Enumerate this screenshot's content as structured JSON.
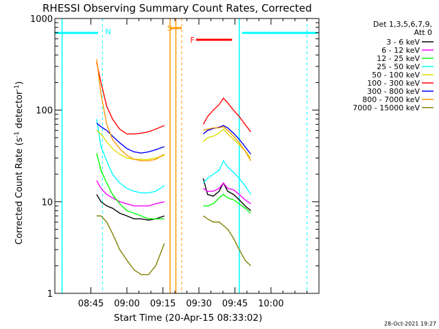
{
  "chart_data": {
    "type": "line",
    "title": "RHESSI Observing Summary Count Rates, Corrected",
    "xlabel": "Start Time (20-Apr-15 08:33:02)",
    "ylabel": "Corrected Count Rate (s",
    "ylabel_sup1": "-1",
    "ylabel_mid": " detector",
    "ylabel_sup2": "-1",
    "ylabel_end": ")",
    "yscale": "log",
    "ylim": [
      1,
      1000
    ],
    "xlim_minutes": [
      8.5,
      10.33
    ],
    "y_ticks": [
      {
        "value": 1,
        "label": "1"
      },
      {
        "value": 10,
        "label": "10"
      },
      {
        "value": 100,
        "label": "100"
      },
      {
        "value": 1000,
        "label": "1000"
      }
    ],
    "x_ticks": [
      {
        "time": "08:45",
        "hours": 8.75
      },
      {
        "time": "09:00",
        "hours": 9.0
      },
      {
        "time": "09:15",
        "hours": 9.25
      },
      {
        "time": "09:30",
        "hours": 9.5
      },
      {
        "time": "09:45",
        "hours": 9.75
      },
      {
        "time": "10:00",
        "hours": 10.0
      }
    ],
    "legend": {
      "placement": "top-right",
      "header1": "Det 1,3,5,6,7,9,",
      "header2": "Att 0"
    },
    "series": [
      {
        "name": "3 - 6 keV",
        "color": "#000000",
        "seg1": [
          [
            8.79,
            12
          ],
          [
            8.82,
            10
          ],
          [
            8.86,
            9
          ],
          [
            8.9,
            8.5
          ],
          [
            8.95,
            7.5
          ],
          [
            9.0,
            7
          ],
          [
            9.05,
            6.5
          ],
          [
            9.1,
            6.5
          ],
          [
            9.15,
            6.3
          ],
          [
            9.2,
            6.5
          ],
          [
            9.26,
            7
          ]
        ],
        "seg2": [
          [
            9.53,
            18
          ],
          [
            9.56,
            12
          ],
          [
            9.6,
            11.5
          ],
          [
            9.64,
            13
          ],
          [
            9.67,
            16
          ],
          [
            9.7,
            13
          ],
          [
            9.74,
            12
          ],
          [
            9.78,
            10.5
          ],
          [
            9.82,
            9
          ],
          [
            9.86,
            8
          ]
        ]
      },
      {
        "name": "6 - 12 keV",
        "color": "#ff00ff",
        "seg1": [
          [
            8.79,
            17
          ],
          [
            8.82,
            14
          ],
          [
            8.86,
            12
          ],
          [
            8.9,
            11
          ],
          [
            8.95,
            10
          ],
          [
            9.0,
            9.5
          ],
          [
            9.05,
            9
          ],
          [
            9.1,
            9
          ],
          [
            9.15,
            9
          ],
          [
            9.2,
            9.5
          ],
          [
            9.26,
            10
          ]
        ],
        "seg2": [
          [
            9.53,
            14
          ],
          [
            9.56,
            13
          ],
          [
            9.6,
            13
          ],
          [
            9.64,
            14
          ],
          [
            9.67,
            16
          ],
          [
            9.7,
            14
          ],
          [
            9.74,
            13.5
          ],
          [
            9.78,
            12
          ],
          [
            9.82,
            10.5
          ],
          [
            9.86,
            9.5
          ]
        ]
      },
      {
        "name": "12 - 25 keV",
        "color": "#00ff00",
        "seg1": [
          [
            8.79,
            34
          ],
          [
            8.82,
            22
          ],
          [
            8.86,
            16
          ],
          [
            8.9,
            12
          ],
          [
            8.95,
            9.5
          ],
          [
            9.0,
            8
          ],
          [
            9.05,
            7.5
          ],
          [
            9.1,
            7
          ],
          [
            9.15,
            6.5
          ],
          [
            9.2,
            6.5
          ],
          [
            9.26,
            6.5
          ]
        ],
        "seg2": [
          [
            9.53,
            9
          ],
          [
            9.56,
            9
          ],
          [
            9.6,
            9.5
          ],
          [
            9.64,
            11
          ],
          [
            9.67,
            12
          ],
          [
            9.7,
            11
          ],
          [
            9.74,
            10.5
          ],
          [
            9.78,
            9.5
          ],
          [
            9.82,
            8.5
          ],
          [
            9.86,
            7.5
          ]
        ]
      },
      {
        "name": "25 - 50 keV",
        "color": "#00ffff",
        "seg1": [
          [
            8.79,
            80
          ],
          [
            8.82,
            40
          ],
          [
            8.86,
            28
          ],
          [
            8.9,
            20
          ],
          [
            8.95,
            16
          ],
          [
            9.0,
            14
          ],
          [
            9.05,
            13
          ],
          [
            9.1,
            12.5
          ],
          [
            9.15,
            12.5
          ],
          [
            9.2,
            13
          ],
          [
            9.26,
            15
          ]
        ],
        "seg2": [
          [
            9.53,
            16
          ],
          [
            9.56,
            18
          ],
          [
            9.6,
            20
          ],
          [
            9.64,
            22
          ],
          [
            9.67,
            28
          ],
          [
            9.7,
            24
          ],
          [
            9.74,
            21
          ],
          [
            9.78,
            18
          ],
          [
            9.82,
            15
          ],
          [
            9.86,
            12
          ]
        ]
      },
      {
        "name": "50 - 100 keV",
        "color": "#dddd00",
        "seg1": [
          [
            8.79,
            60
          ],
          [
            8.82,
            55
          ],
          [
            8.86,
            45
          ],
          [
            8.9,
            38
          ],
          [
            8.95,
            33
          ],
          [
            9.0,
            30
          ],
          [
            9.05,
            29
          ],
          [
            9.1,
            29
          ],
          [
            9.15,
            29
          ],
          [
            9.2,
            30
          ],
          [
            9.26,
            32
          ]
        ],
        "seg2": [
          [
            9.53,
            45
          ],
          [
            9.56,
            50
          ],
          [
            9.6,
            52
          ],
          [
            9.64,
            56
          ],
          [
            9.67,
            62
          ],
          [
            9.7,
            55
          ],
          [
            9.74,
            48
          ],
          [
            9.78,
            42
          ],
          [
            9.82,
            36
          ],
          [
            9.86,
            30
          ]
        ]
      },
      {
        "name": "100 - 300 keV",
        "color": "#ff0000",
        "seg1": [
          [
            8.79,
            330
          ],
          [
            8.82,
            200
          ],
          [
            8.86,
            110
          ],
          [
            8.9,
            80
          ],
          [
            8.95,
            62
          ],
          [
            9.0,
            55
          ],
          [
            9.05,
            55
          ],
          [
            9.1,
            56
          ],
          [
            9.15,
            58
          ],
          [
            9.2,
            62
          ],
          [
            9.26,
            68
          ]
        ],
        "seg2": [
          [
            9.53,
            70
          ],
          [
            9.56,
            85
          ],
          [
            9.6,
            100
          ],
          [
            9.64,
            115
          ],
          [
            9.67,
            135
          ],
          [
            9.7,
            120
          ],
          [
            9.74,
            100
          ],
          [
            9.78,
            85
          ],
          [
            9.82,
            70
          ],
          [
            9.86,
            58
          ]
        ]
      },
      {
        "name": "300 - 800 keV",
        "color": "#0000ff",
        "seg1": [
          [
            8.79,
            72
          ],
          [
            8.82,
            66
          ],
          [
            8.86,
            60
          ],
          [
            8.9,
            52
          ],
          [
            8.95,
            44
          ],
          [
            9.0,
            38
          ],
          [
            9.05,
            35
          ],
          [
            9.1,
            34
          ],
          [
            9.15,
            35
          ],
          [
            9.2,
            37
          ],
          [
            9.26,
            40
          ]
        ],
        "seg2": [
          [
            9.53,
            55
          ],
          [
            9.56,
            60
          ],
          [
            9.6,
            63
          ],
          [
            9.64,
            65
          ],
          [
            9.67,
            68
          ],
          [
            9.7,
            64
          ],
          [
            9.74,
            56
          ],
          [
            9.78,
            48
          ],
          [
            9.82,
            40
          ],
          [
            9.86,
            33
          ]
        ]
      },
      {
        "name": "800 - 7000 keV",
        "color": "#ff9900",
        "seg1": [
          [
            8.79,
            360
          ],
          [
            8.82,
            150
          ],
          [
            8.86,
            70
          ],
          [
            8.9,
            48
          ],
          [
            8.95,
            38
          ],
          [
            9.0,
            32
          ],
          [
            9.05,
            29
          ],
          [
            9.1,
            28
          ],
          [
            9.15,
            28
          ],
          [
            9.2,
            29
          ],
          [
            9.26,
            33
          ]
        ],
        "seg2": [
          [
            9.53,
            60
          ],
          [
            9.56,
            62
          ],
          [
            9.6,
            64
          ],
          [
            9.64,
            64
          ],
          [
            9.67,
            66
          ],
          [
            9.7,
            60
          ],
          [
            9.74,
            52
          ],
          [
            9.78,
            44
          ],
          [
            9.82,
            36
          ],
          [
            9.86,
            28
          ]
        ]
      },
      {
        "name": "7000 - 15000 keV",
        "color": "#808000",
        "seg1": [
          [
            8.79,
            7
          ],
          [
            8.82,
            7
          ],
          [
            8.86,
            6
          ],
          [
            8.9,
            4.5
          ],
          [
            8.95,
            3
          ],
          [
            9.0,
            2.3
          ],
          [
            9.05,
            1.8
          ],
          [
            9.1,
            1.6
          ],
          [
            9.15,
            1.6
          ],
          [
            9.2,
            2
          ],
          [
            9.26,
            3.5
          ]
        ],
        "seg2": [
          [
            9.53,
            7
          ],
          [
            9.56,
            6.5
          ],
          [
            9.6,
            6
          ],
          [
            9.64,
            6
          ],
          [
            9.67,
            5.5
          ],
          [
            9.7,
            5
          ],
          [
            9.74,
            4
          ],
          [
            9.78,
            3
          ],
          [
            9.82,
            2.3
          ],
          [
            9.86,
            2
          ]
        ]
      }
    ],
    "annotations": [
      {
        "label": "N",
        "color": "#00ffff"
      },
      {
        "label": "S",
        "color": "#ff9900"
      },
      {
        "label": "F",
        "color": "#ff0000"
      }
    ],
    "footer_date": "28-Oct-2021 19:27"
  }
}
